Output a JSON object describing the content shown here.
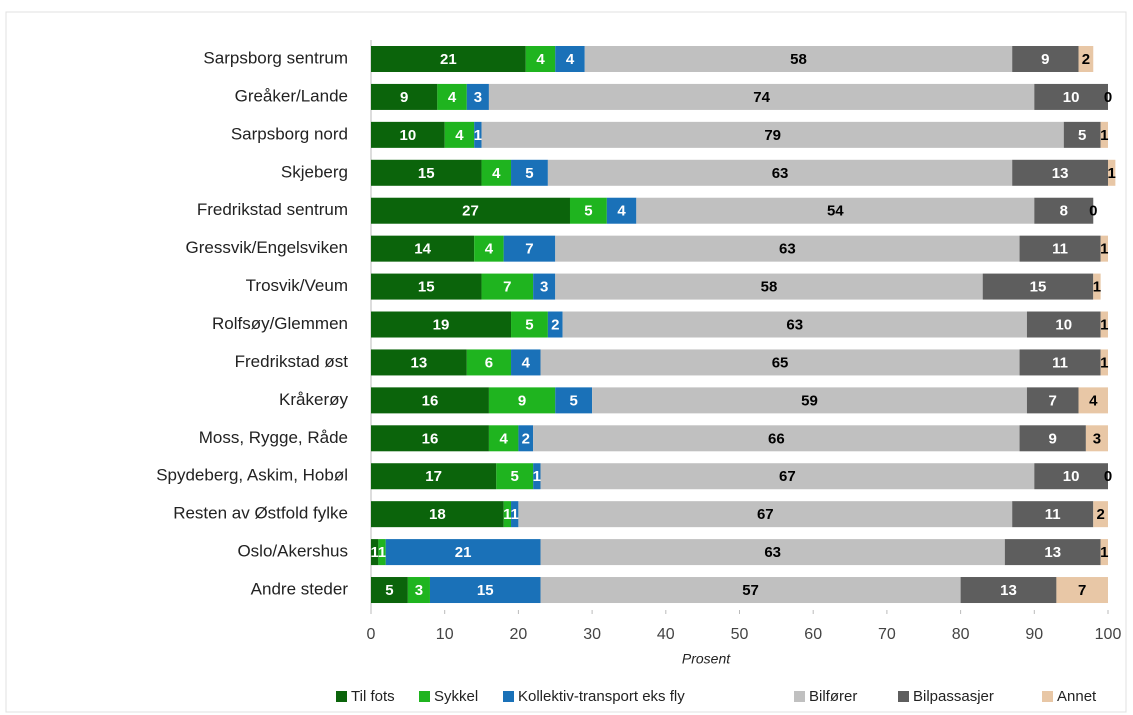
{
  "chart_data": {
    "type": "stacked_barh",
    "categories": [
      "Sarpsborg sentrum",
      "Greåker/Lande",
      "Sarpsborg nord",
      "Skjeberg",
      "Fredrikstad sentrum",
      "Gressvik/Engelsviken",
      "Trosvik/Veum",
      "Rolfsøy/Glemmen",
      "Fredrikstad øst",
      "Kråkerøy",
      "Moss, Rygge, Råde",
      "Spydeberg, Askim, Hobøl",
      "Resten av Østfold fylke",
      "Oslo/Akershus",
      "Andre steder"
    ],
    "series": [
      {
        "name": "Til fots",
        "color": "#0b640b",
        "values": [
          21,
          9,
          10,
          15,
          27,
          14,
          15,
          19,
          13,
          16,
          16,
          17,
          18,
          1,
          5
        ]
      },
      {
        "name": "Sykkel",
        "color": "#1fb41f",
        "values": [
          4,
          4,
          4,
          4,
          5,
          4,
          7,
          5,
          6,
          9,
          4,
          5,
          1,
          1,
          3
        ]
      },
      {
        "name": "Kollektiv-transport eks fly",
        "color": "#1a71b8",
        "values": [
          4,
          3,
          1,
          5,
          4,
          7,
          3,
          2,
          4,
          5,
          2,
          1,
          1,
          21,
          15
        ]
      },
      {
        "name": "Bilfører",
        "color": "#c0c0c0",
        "values": [
          58,
          74,
          79,
          63,
          54,
          63,
          58,
          63,
          65,
          59,
          66,
          67,
          67,
          63,
          57
        ]
      },
      {
        "name": "Bilpassasjer",
        "color": "#5e5e5e",
        "values": [
          9,
          10,
          5,
          13,
          8,
          11,
          15,
          10,
          11,
          7,
          9,
          10,
          11,
          13,
          13
        ]
      },
      {
        "name": "Annet",
        "color": "#e8c7a6",
        "values": [
          2,
          0,
          1,
          1,
          0,
          1,
          1,
          1,
          1,
          4,
          3,
          0,
          2,
          1,
          7
        ]
      }
    ],
    "xlabel": "Prosent",
    "xlim": [
      0,
      100
    ],
    "xticks": [
      0,
      10,
      20,
      30,
      40,
      50,
      60,
      70,
      80,
      90,
      100
    ],
    "legend": "bottom"
  }
}
